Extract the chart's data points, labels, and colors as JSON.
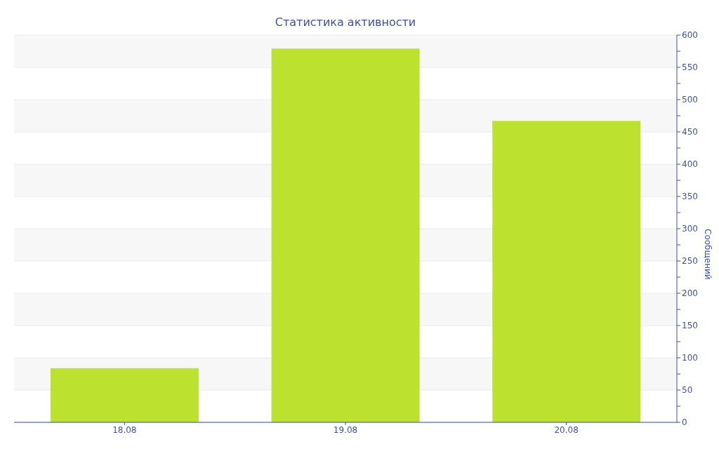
{
  "chart_data": {
    "type": "bar",
    "title": "Статистика активности",
    "ylabel": "Сообщений",
    "categories": [
      "18.08",
      "19.08",
      "20.08"
    ],
    "values": [
      84,
      579,
      467
    ],
    "color": "#bce12f",
    "ylim": [
      0,
      600
    ],
    "yticks": [
      0,
      {
        "value": 25,
        "label": null
      },
      50,
      {
        "value": 75,
        "label": null
      },
      100,
      {
        "value": 125,
        "label": null
      },
      150,
      {
        "value": 175,
        "label": null
      },
      200,
      {
        "value": 225,
        "label": null
      },
      250,
      {
        "value": 275,
        "label": null
      },
      300,
      {
        "value": 325,
        "label": null
      },
      350,
      {
        "value": 375,
        "label": null
      },
      400,
      {
        "value": 425,
        "label": null
      },
      450,
      {
        "value": 475,
        "label": null
      },
      500,
      {
        "value": 525,
        "label": null
      },
      550,
      {
        "value": 575,
        "label": null
      },
      600
    ],
    "grid": "y"
  }
}
